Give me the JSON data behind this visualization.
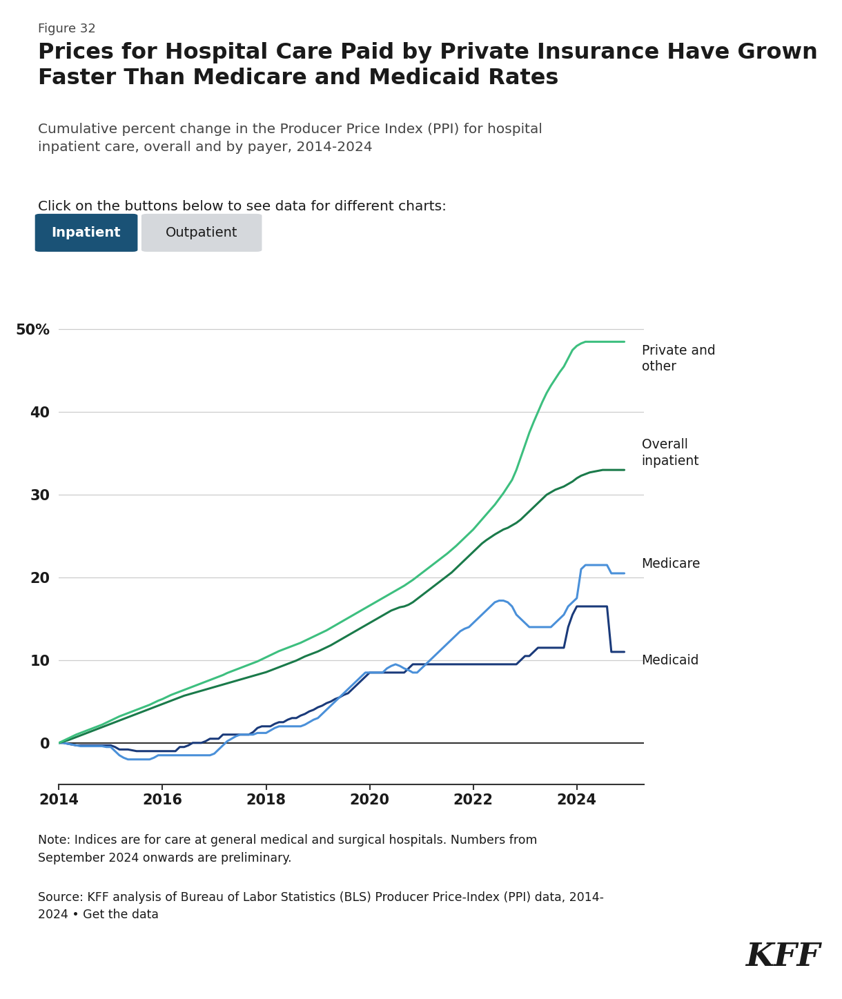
{
  "figure_label": "Figure 32",
  "title": "Prices for Hospital Care Paid by Private Insurance Have Grown\nFaster Than Medicare and Medicaid Rates",
  "subtitle": "Cumulative percent change in the Producer Price Index (PPI) for hospital\ninpatient care, overall and by payer, 2014-2024",
  "button_text_active": "Inpatient",
  "button_text_inactive": "Outpatient",
  "button_active_color": "#1a5276",
  "button_inactive_color": "#d5d8dc",
  "note": "Note: Indices are for care at general medical and surgical hospitals. Numbers from\nSeptember 2024 onwards are preliminary.",
  "source": "Source: KFF analysis of Bureau of Labor Statistics (BLS) Producer Price-Index (PPI) data, 2014-\n2024 • Get the data",
  "kff_logo": "KFF",
  "colors": {
    "private": "#3dbf7f",
    "overall": "#1a7a4a",
    "medicare": "#4a90d9",
    "medicaid": "#1a3a7a"
  },
  "line_labels": {
    "private": "Private and\nother",
    "overall": "Overall\ninpatient",
    "medicare": "Medicare",
    "medicaid": "Medicaid"
  },
  "ylim": [
    -5,
    56
  ],
  "yticks": [
    0,
    10,
    20,
    30,
    40,
    50
  ],
  "xlim": [
    2014.0,
    2025.3
  ],
  "xticks": [
    2014,
    2016,
    2018,
    2020,
    2022,
    2024
  ],
  "years_monthly": [
    2014.0,
    2014.083,
    2014.167,
    2014.25,
    2014.333,
    2014.417,
    2014.5,
    2014.583,
    2014.667,
    2014.75,
    2014.833,
    2014.917,
    2015.0,
    2015.083,
    2015.167,
    2015.25,
    2015.333,
    2015.417,
    2015.5,
    2015.583,
    2015.667,
    2015.75,
    2015.833,
    2015.917,
    2016.0,
    2016.083,
    2016.167,
    2016.25,
    2016.333,
    2016.417,
    2016.5,
    2016.583,
    2016.667,
    2016.75,
    2016.833,
    2016.917,
    2017.0,
    2017.083,
    2017.167,
    2017.25,
    2017.333,
    2017.417,
    2017.5,
    2017.583,
    2017.667,
    2017.75,
    2017.833,
    2017.917,
    2018.0,
    2018.083,
    2018.167,
    2018.25,
    2018.333,
    2018.417,
    2018.5,
    2018.583,
    2018.667,
    2018.75,
    2018.833,
    2018.917,
    2019.0,
    2019.083,
    2019.167,
    2019.25,
    2019.333,
    2019.417,
    2019.5,
    2019.583,
    2019.667,
    2019.75,
    2019.833,
    2019.917,
    2020.0,
    2020.083,
    2020.167,
    2020.25,
    2020.333,
    2020.417,
    2020.5,
    2020.583,
    2020.667,
    2020.75,
    2020.833,
    2020.917,
    2021.0,
    2021.083,
    2021.167,
    2021.25,
    2021.333,
    2021.417,
    2021.5,
    2021.583,
    2021.667,
    2021.75,
    2021.833,
    2021.917,
    2022.0,
    2022.083,
    2022.167,
    2022.25,
    2022.333,
    2022.417,
    2022.5,
    2022.583,
    2022.667,
    2022.75,
    2022.833,
    2022.917,
    2023.0,
    2023.083,
    2023.167,
    2023.25,
    2023.333,
    2023.417,
    2023.5,
    2023.583,
    2023.667,
    2023.75,
    2023.833,
    2023.917,
    2024.0,
    2024.083,
    2024.167,
    2024.25,
    2024.333,
    2024.417,
    2024.5,
    2024.583,
    2024.667,
    2024.75,
    2024.833,
    2024.917
  ],
  "private_data": [
    0.0,
    0.25,
    0.5,
    0.75,
    1.0,
    1.2,
    1.4,
    1.6,
    1.8,
    2.0,
    2.2,
    2.45,
    2.7,
    2.95,
    3.2,
    3.4,
    3.6,
    3.8,
    4.0,
    4.2,
    4.4,
    4.6,
    4.85,
    5.1,
    5.3,
    5.55,
    5.8,
    6.0,
    6.2,
    6.4,
    6.6,
    6.8,
    7.0,
    7.2,
    7.4,
    7.6,
    7.8,
    8.0,
    8.2,
    8.45,
    8.65,
    8.85,
    9.05,
    9.25,
    9.45,
    9.65,
    9.85,
    10.1,
    10.35,
    10.6,
    10.85,
    11.1,
    11.3,
    11.5,
    11.7,
    11.9,
    12.1,
    12.35,
    12.6,
    12.85,
    13.1,
    13.35,
    13.6,
    13.9,
    14.2,
    14.5,
    14.8,
    15.1,
    15.4,
    15.7,
    16.0,
    16.3,
    16.6,
    16.9,
    17.2,
    17.5,
    17.8,
    18.1,
    18.4,
    18.7,
    19.0,
    19.35,
    19.7,
    20.1,
    20.5,
    20.9,
    21.3,
    21.7,
    22.1,
    22.5,
    22.9,
    23.35,
    23.8,
    24.3,
    24.8,
    25.3,
    25.8,
    26.4,
    27.0,
    27.6,
    28.2,
    28.8,
    29.5,
    30.2,
    31.0,
    31.8,
    33.0,
    34.5,
    36.0,
    37.5,
    38.8,
    40.0,
    41.2,
    42.3,
    43.2,
    44.0,
    44.8,
    45.5,
    46.5,
    47.5,
    48.0,
    48.3,
    48.5,
    48.5,
    48.5,
    48.5,
    48.5,
    48.5,
    48.5,
    48.5,
    48.5,
    48.5
  ],
  "overall_data": [
    0.0,
    0.15,
    0.3,
    0.5,
    0.7,
    0.9,
    1.1,
    1.3,
    1.5,
    1.7,
    1.9,
    2.1,
    2.3,
    2.5,
    2.7,
    2.9,
    3.1,
    3.3,
    3.5,
    3.7,
    3.9,
    4.1,
    4.3,
    4.5,
    4.7,
    4.9,
    5.1,
    5.3,
    5.5,
    5.7,
    5.85,
    6.0,
    6.15,
    6.3,
    6.45,
    6.6,
    6.75,
    6.9,
    7.05,
    7.2,
    7.35,
    7.5,
    7.65,
    7.8,
    7.95,
    8.1,
    8.25,
    8.4,
    8.55,
    8.75,
    8.95,
    9.15,
    9.35,
    9.55,
    9.75,
    9.95,
    10.2,
    10.45,
    10.65,
    10.85,
    11.05,
    11.3,
    11.55,
    11.8,
    12.1,
    12.4,
    12.7,
    13.0,
    13.3,
    13.6,
    13.9,
    14.2,
    14.5,
    14.8,
    15.1,
    15.4,
    15.7,
    16.0,
    16.2,
    16.4,
    16.5,
    16.7,
    17.0,
    17.4,
    17.8,
    18.2,
    18.6,
    19.0,
    19.4,
    19.8,
    20.2,
    20.6,
    21.1,
    21.6,
    22.1,
    22.6,
    23.1,
    23.6,
    24.1,
    24.5,
    24.85,
    25.2,
    25.5,
    25.8,
    26.0,
    26.3,
    26.6,
    27.0,
    27.5,
    28.0,
    28.5,
    29.0,
    29.5,
    30.0,
    30.3,
    30.6,
    30.8,
    31.0,
    31.3,
    31.6,
    32.0,
    32.3,
    32.5,
    32.7,
    32.8,
    32.9,
    33.0,
    33.0,
    33.0,
    33.0,
    33.0,
    33.0
  ],
  "medicare_data": [
    0.0,
    0.0,
    -0.1,
    -0.2,
    -0.3,
    -0.4,
    -0.4,
    -0.4,
    -0.4,
    -0.4,
    -0.4,
    -0.5,
    -0.5,
    -1.0,
    -1.5,
    -1.8,
    -2.0,
    -2.0,
    -2.0,
    -2.0,
    -2.0,
    -2.0,
    -1.8,
    -1.5,
    -1.5,
    -1.5,
    -1.5,
    -1.5,
    -1.5,
    -1.5,
    -1.5,
    -1.5,
    -1.5,
    -1.5,
    -1.5,
    -1.5,
    -1.3,
    -0.8,
    -0.3,
    0.2,
    0.5,
    0.8,
    1.0,
    1.0,
    1.0,
    1.0,
    1.2,
    1.2,
    1.2,
    1.5,
    1.8,
    2.0,
    2.0,
    2.0,
    2.0,
    2.0,
    2.0,
    2.2,
    2.5,
    2.8,
    3.0,
    3.5,
    4.0,
    4.5,
    5.0,
    5.5,
    6.0,
    6.5,
    7.0,
    7.5,
    8.0,
    8.5,
    8.5,
    8.5,
    8.5,
    8.5,
    9.0,
    9.3,
    9.5,
    9.3,
    9.0,
    8.8,
    8.5,
    8.5,
    9.0,
    9.5,
    10.0,
    10.5,
    11.0,
    11.5,
    12.0,
    12.5,
    13.0,
    13.5,
    13.8,
    14.0,
    14.5,
    15.0,
    15.5,
    16.0,
    16.5,
    17.0,
    17.2,
    17.2,
    17.0,
    16.5,
    15.5,
    15.0,
    14.5,
    14.0,
    14.0,
    14.0,
    14.0,
    14.0,
    14.0,
    14.5,
    15.0,
    15.5,
    16.5,
    17.0,
    17.5,
    21.0,
    21.5,
    21.5,
    21.5,
    21.5,
    21.5,
    21.5,
    20.5,
    20.5,
    20.5,
    20.5
  ],
  "medicaid_data": [
    0.0,
    0.0,
    -0.1,
    -0.2,
    -0.3,
    -0.3,
    -0.3,
    -0.3,
    -0.3,
    -0.3,
    -0.3,
    -0.3,
    -0.3,
    -0.5,
    -0.8,
    -0.8,
    -0.8,
    -0.9,
    -1.0,
    -1.0,
    -1.0,
    -1.0,
    -1.0,
    -1.0,
    -1.0,
    -1.0,
    -1.0,
    -1.0,
    -0.5,
    -0.5,
    -0.3,
    0.0,
    0.0,
    0.0,
    0.2,
    0.5,
    0.5,
    0.5,
    1.0,
    1.0,
    1.0,
    1.0,
    1.0,
    1.0,
    1.0,
    1.3,
    1.8,
    2.0,
    2.0,
    2.0,
    2.3,
    2.5,
    2.5,
    2.8,
    3.0,
    3.0,
    3.3,
    3.5,
    3.8,
    4.0,
    4.3,
    4.5,
    4.8,
    5.0,
    5.3,
    5.5,
    5.8,
    6.0,
    6.5,
    7.0,
    7.5,
    8.0,
    8.5,
    8.5,
    8.5,
    8.5,
    8.5,
    8.5,
    8.5,
    8.5,
    8.5,
    9.0,
    9.5,
    9.5,
    9.5,
    9.5,
    9.5,
    9.5,
    9.5,
    9.5,
    9.5,
    9.5,
    9.5,
    9.5,
    9.5,
    9.5,
    9.5,
    9.5,
    9.5,
    9.5,
    9.5,
    9.5,
    9.5,
    9.5,
    9.5,
    9.5,
    9.5,
    10.0,
    10.5,
    10.5,
    11.0,
    11.5,
    11.5,
    11.5,
    11.5,
    11.5,
    11.5,
    11.5,
    14.0,
    15.5,
    16.5,
    16.5,
    16.5,
    16.5,
    16.5,
    16.5,
    16.5,
    16.5,
    11.0,
    11.0,
    11.0,
    11.0
  ],
  "bg_color": "#ffffff",
  "text_color_dark": "#1a1a1a",
  "text_color_mid": "#444444",
  "text_color_light": "#666666",
  "grid_color": "#cccccc",
  "axis_color": "#333333"
}
